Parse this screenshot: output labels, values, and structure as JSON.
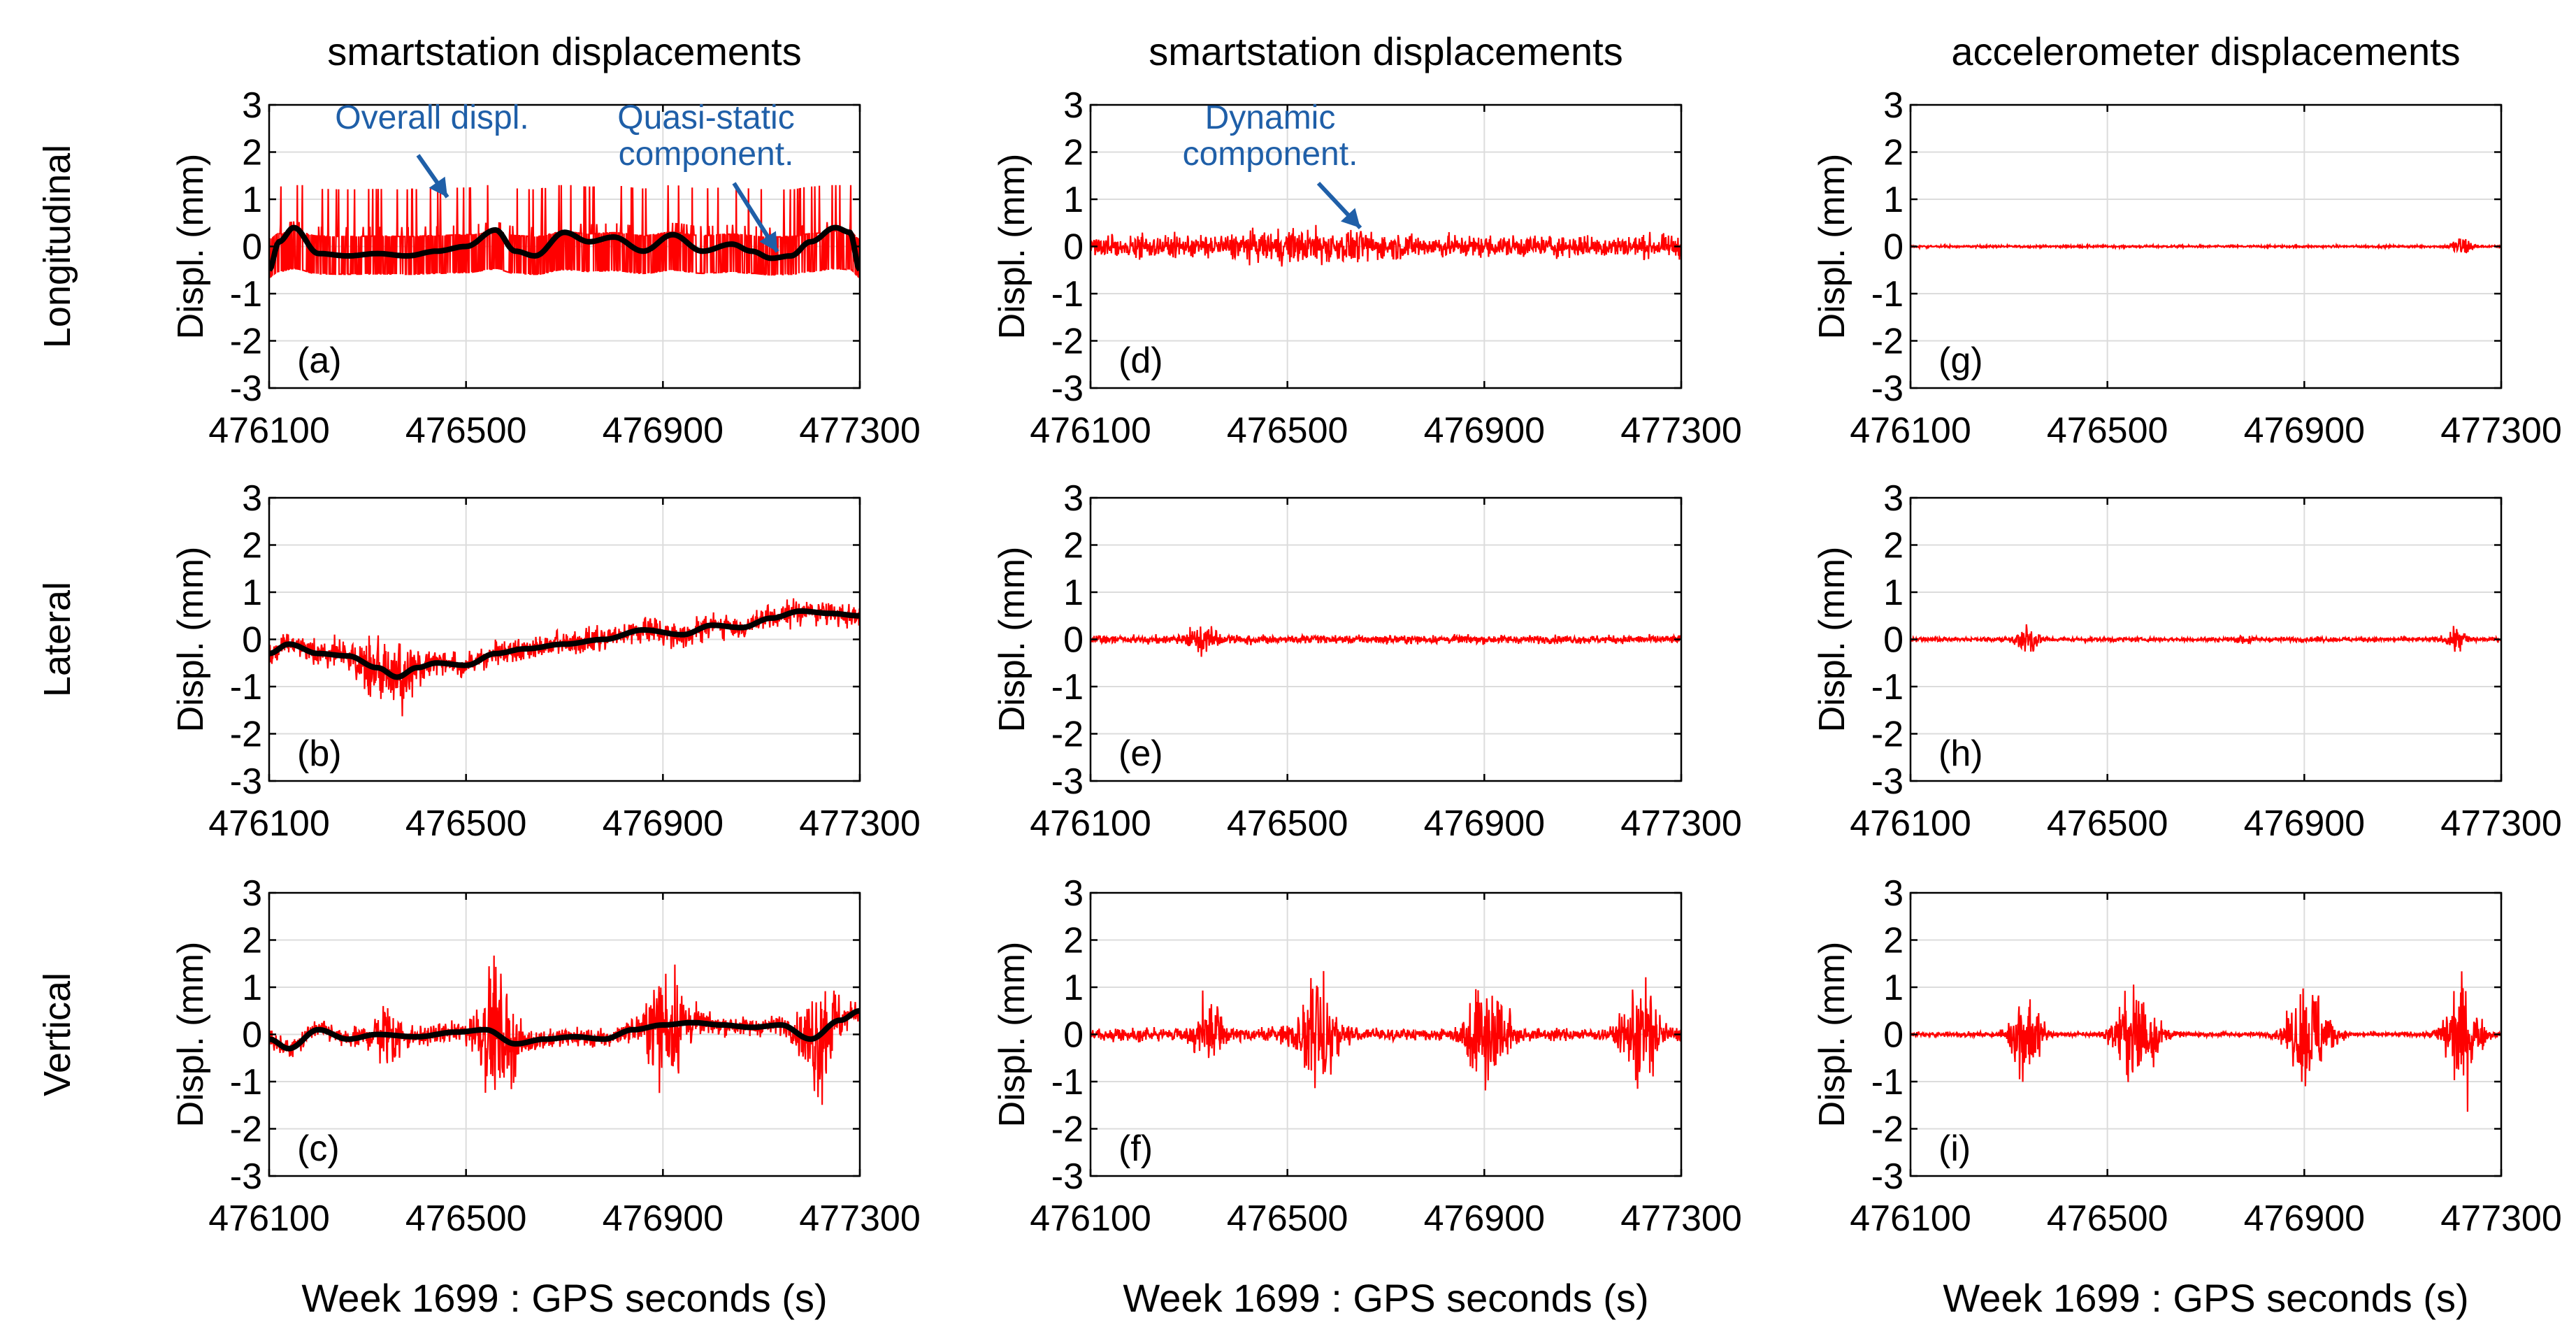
{
  "colors": {
    "signal": "#ff0000",
    "quasi_static": "#000000",
    "annotation": "#1f5fa8",
    "grid": "#dcdcdc",
    "axis": "#000000"
  },
  "chart_data": {
    "type": "line",
    "layout": "3x3 grid",
    "column_titles": [
      "smartstation displacements",
      "smartstation displacements",
      "accelerometer displacements"
    ],
    "row_labels": [
      "Longitudinal",
      "Lateral",
      "Vertical"
    ],
    "xlabel": "Week 1699 : GPS seconds (s)",
    "ylabel": "Displ. (mm)",
    "xlim": [
      476100,
      477300
    ],
    "ylim": [
      -3,
      3
    ],
    "xticks": [
      "476100",
      "476500",
      "476900",
      "477300"
    ],
    "yticks": [
      "3",
      "2",
      "1",
      "0",
      "-1",
      "-2",
      "-3"
    ],
    "grid": true,
    "panels": [
      {
        "id": "a",
        "label": "(a)",
        "row": 0,
        "col": 0,
        "kind": "smartstation-overall",
        "series": [
          {
            "name": "overall displacement",
            "color": "red"
          },
          {
            "name": "quasi-static component",
            "color": "black"
          }
        ],
        "quasi_static": {
          "x": [
            476100,
            476120,
            476150,
            476200,
            476260,
            476320,
            476380,
            476440,
            476500,
            476560,
            476600,
            476640,
            476700,
            476750,
            476800,
            476860,
            476920,
            476980,
            477040,
            477080,
            477120,
            477160,
            477200,
            477250,
            477280,
            477300
          ],
          "y": [
            -0.5,
            0.1,
            0.4,
            -0.15,
            -0.2,
            -0.15,
            -0.2,
            -0.1,
            0.0,
            0.35,
            -0.1,
            -0.2,
            0.3,
            0.1,
            0.2,
            -0.1,
            0.25,
            -0.1,
            0.05,
            -0.1,
            -0.25,
            -0.2,
            0.1,
            0.4,
            0.3,
            -0.5
          ]
        }
      },
      {
        "id": "d",
        "label": "(d)",
        "row": 0,
        "col": 1,
        "kind": "smartstation-dynamic",
        "series": [
          {
            "name": "dynamic component",
            "color": "red"
          }
        ]
      },
      {
        "id": "g",
        "label": "(g)",
        "row": 0,
        "col": 2,
        "kind": "accelerometer",
        "series": [
          {
            "name": "accelerometer displacement",
            "color": "red"
          }
        ]
      },
      {
        "id": "b",
        "label": "(b)",
        "row": 1,
        "col": 0,
        "kind": "smartstation-overall",
        "series": [
          {
            "name": "overall displacement",
            "color": "red"
          },
          {
            "name": "quasi-static component",
            "color": "black"
          }
        ],
        "quasi_static": {
          "x": [
            476100,
            476140,
            476200,
            476260,
            476320,
            476360,
            476400,
            476440,
            476500,
            476560,
            476620,
            476700,
            476780,
            476860,
            476940,
            477000,
            477060,
            477120,
            477180,
            477240,
            477300
          ],
          "y": [
            -0.3,
            -0.1,
            -0.3,
            -0.35,
            -0.6,
            -0.8,
            -0.6,
            -0.5,
            -0.55,
            -0.3,
            -0.2,
            -0.1,
            0.0,
            0.2,
            0.1,
            0.3,
            0.25,
            0.45,
            0.6,
            0.55,
            0.5
          ]
        }
      },
      {
        "id": "e",
        "label": "(e)",
        "row": 1,
        "col": 1,
        "kind": "smartstation-dynamic",
        "series": [
          {
            "name": "dynamic component",
            "color": "red"
          }
        ]
      },
      {
        "id": "h",
        "label": "(h)",
        "row": 1,
        "col": 2,
        "kind": "accelerometer",
        "series": [
          {
            "name": "accelerometer displacement",
            "color": "red"
          }
        ]
      },
      {
        "id": "c",
        "label": "(c)",
        "row": 2,
        "col": 0,
        "kind": "smartstation-overall",
        "series": [
          {
            "name": "overall displacement",
            "color": "red"
          },
          {
            "name": "quasi-static component",
            "color": "black"
          }
        ],
        "quasi_static": {
          "x": [
            476100,
            476140,
            476200,
            476260,
            476320,
            476400,
            476480,
            476540,
            476600,
            476660,
            476720,
            476780,
            476840,
            476900,
            476960,
            477020,
            477080,
            477140,
            477200,
            477260,
            477300
          ],
          "y": [
            -0.1,
            -0.3,
            0.1,
            -0.1,
            0.0,
            -0.05,
            0.05,
            0.1,
            -0.2,
            -0.1,
            -0.05,
            -0.1,
            0.1,
            0.2,
            0.25,
            0.2,
            0.15,
            0.2,
            -0.1,
            0.3,
            0.5
          ]
        }
      },
      {
        "id": "f",
        "label": "(f)",
        "row": 2,
        "col": 1,
        "kind": "smartstation-dynamic",
        "series": [
          {
            "name": "dynamic component",
            "color": "red"
          }
        ]
      },
      {
        "id": "i",
        "label": "(i)",
        "row": 2,
        "col": 2,
        "kind": "accelerometer",
        "series": [
          {
            "name": "accelerometer displacement",
            "color": "red"
          }
        ]
      }
    ],
    "annotations": [
      {
        "panel": "a",
        "text": "Overall displ."
      },
      {
        "panel": "a",
        "text": "Quasi-static"
      },
      {
        "panel": "a",
        "text": "component."
      },
      {
        "panel": "d",
        "text": "Dynamic"
      },
      {
        "panel": "d",
        "text": "component."
      }
    ],
    "notes": "Peak vertical events near 476350, 476550, 476900, 477220 s with amplitude about +/-2 mm; longitudinal signals near +/-0.8 mm; lateral overall drifts from about -0.8 to +0.6 mm."
  }
}
